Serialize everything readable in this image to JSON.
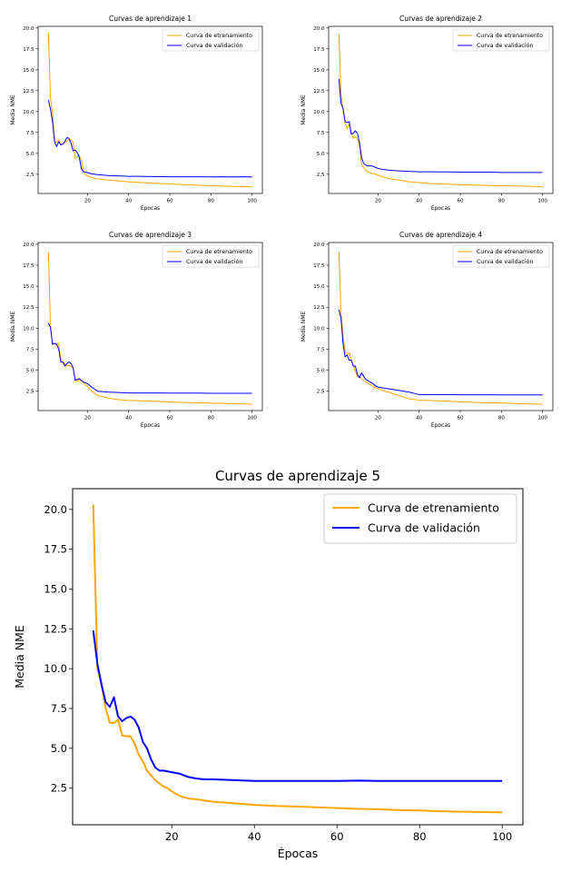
{
  "chart_data": [
    {
      "type": "line",
      "title": "Curvas de aprendizaje 1",
      "xlabel": "Épocas",
      "ylabel": "Media NME",
      "xlim": [
        -4,
        105
      ],
      "ylim": [
        0.2,
        20.2
      ],
      "xticks": [
        20,
        40,
        60,
        80,
        100
      ],
      "yticks": [
        2.5,
        5.0,
        7.5,
        10.0,
        12.5,
        15.0,
        17.5,
        20.0
      ],
      "legend_position": "top-right",
      "series": [
        {
          "name": "Curva de etrenamiento",
          "color": "#FFA500",
          "x": [
            1,
            2,
            3,
            4,
            5,
            6,
            7,
            8,
            9,
            10,
            11,
            12,
            13,
            14,
            15,
            16,
            17,
            18,
            19,
            20,
            22,
            25,
            30,
            35,
            40,
            45,
            50,
            55,
            60,
            65,
            70,
            75,
            80,
            85,
            90,
            95,
            100
          ],
          "y": [
            19.5,
            11.6,
            9.8,
            6.5,
            6.3,
            6.6,
            6.2,
            6.1,
            6.3,
            6.5,
            6.7,
            6.6,
            6.3,
            4.4,
            4.6,
            4.8,
            4.2,
            3.0,
            2.4,
            2.3,
            2.1,
            1.95,
            1.8,
            1.7,
            1.6,
            1.52,
            1.45,
            1.4,
            1.33,
            1.28,
            1.22,
            1.18,
            1.12,
            1.08,
            1.05,
            1.02,
            1.0
          ]
        },
        {
          "name": "Curva de validación",
          "color": "#0000FF",
          "x": [
            1,
            2,
            3,
            4,
            5,
            6,
            7,
            8,
            9,
            10,
            11,
            12,
            13,
            14,
            15,
            16,
            17,
            18,
            19,
            20,
            22,
            25,
            30,
            35,
            40,
            45,
            50,
            55,
            60,
            65,
            70,
            75,
            80,
            85,
            90,
            95,
            100
          ],
          "y": [
            11.4,
            10.3,
            8.8,
            6.4,
            5.8,
            6.4,
            6.0,
            6.1,
            6.4,
            6.9,
            6.8,
            6.2,
            5.3,
            5.4,
            5.1,
            4.5,
            3.2,
            2.8,
            2.75,
            2.7,
            2.55,
            2.45,
            2.35,
            2.3,
            2.25,
            2.25,
            2.22,
            2.22,
            2.2,
            2.2,
            2.2,
            2.2,
            2.18,
            2.2,
            2.18,
            2.2,
            2.18
          ]
        }
      ]
    },
    {
      "type": "line",
      "title": "Curvas de aprendizaje 2",
      "xlabel": "Épocas",
      "ylabel": "Media NME",
      "xlim": [
        -4,
        105
      ],
      "ylim": [
        0.2,
        20.2
      ],
      "xticks": [
        20,
        40,
        60,
        80,
        100
      ],
      "yticks": [
        2.5,
        5.0,
        7.5,
        10.0,
        12.5,
        15.0,
        17.5,
        20.0
      ],
      "legend_position": "top-right",
      "series": [
        {
          "name": "Curva de etrenamiento",
          "color": "#FFA500",
          "x": [
            1,
            2,
            3,
            4,
            5,
            6,
            7,
            8,
            9,
            10,
            11,
            12,
            13,
            14,
            15,
            16,
            17,
            18,
            19,
            20,
            22,
            25,
            30,
            35,
            40,
            45,
            50,
            55,
            60,
            65,
            70,
            75,
            80,
            85,
            90,
            95,
            100
          ],
          "y": [
            19.3,
            12.2,
            10.2,
            8.6,
            7.9,
            8.5,
            7.5,
            6.8,
            7.0,
            6.7,
            6.0,
            3.6,
            3.3,
            3.0,
            2.8,
            2.7,
            2.6,
            2.55,
            2.5,
            2.4,
            2.2,
            2.0,
            1.8,
            1.6,
            1.5,
            1.4,
            1.35,
            1.3,
            1.25,
            1.22,
            1.18,
            1.15,
            1.12,
            1.1,
            1.08,
            1.05,
            1.0
          ]
        },
        {
          "name": "Curva de validación",
          "color": "#0000FF",
          "x": [
            1,
            2,
            3,
            4,
            5,
            6,
            7,
            8,
            9,
            10,
            11,
            12,
            13,
            14,
            15,
            16,
            17,
            18,
            19,
            20,
            22,
            25,
            30,
            35,
            40,
            45,
            50,
            55,
            60,
            65,
            70,
            75,
            80,
            85,
            90,
            95,
            100
          ],
          "y": [
            13.9,
            11.0,
            10.4,
            8.8,
            8.7,
            8.8,
            7.3,
            7.4,
            7.7,
            7.4,
            6.3,
            4.5,
            3.8,
            3.6,
            3.5,
            3.5,
            3.5,
            3.4,
            3.3,
            3.2,
            3.1,
            3.0,
            2.9,
            2.85,
            2.8,
            2.8,
            2.78,
            2.78,
            2.75,
            2.75,
            2.75,
            2.75,
            2.72,
            2.72,
            2.72,
            2.72,
            2.72
          ]
        }
      ]
    },
    {
      "type": "line",
      "title": "Curvas de aprendizaje 3",
      "xlabel": "Épocas",
      "ylabel": "Media NME",
      "xlim": [
        -4,
        105
      ],
      "ylim": [
        0.2,
        20.2
      ],
      "xticks": [
        20,
        40,
        60,
        80,
        100
      ],
      "yticks": [
        2.5,
        5.0,
        7.5,
        10.0,
        12.5,
        15.0,
        17.5,
        20.0
      ],
      "legend_position": "top-right",
      "series": [
        {
          "name": "Curva de etrenamiento",
          "color": "#FFA500",
          "x": [
            1,
            2,
            3,
            4,
            5,
            6,
            7,
            8,
            9,
            10,
            11,
            12,
            13,
            14,
            15,
            16,
            17,
            18,
            19,
            20,
            22,
            25,
            30,
            35,
            40,
            45,
            50,
            55,
            60,
            65,
            70,
            75,
            80,
            85,
            90,
            95,
            100
          ],
          "y": [
            19.1,
            10.2,
            8.0,
            8.2,
            8.0,
            8.2,
            6.3,
            6.0,
            5.8,
            5.5,
            5.6,
            5.4,
            5.3,
            4.0,
            3.7,
            3.9,
            3.8,
            3.5,
            3.2,
            3.1,
            2.5,
            2.0,
            1.7,
            1.5,
            1.42,
            1.38,
            1.33,
            1.28,
            1.22,
            1.18,
            1.15,
            1.12,
            1.08,
            1.05,
            1.02,
            1.0,
            0.95
          ]
        },
        {
          "name": "Curva de validación",
          "color": "#0000FF",
          "x": [
            1,
            2,
            3,
            4,
            5,
            6,
            7,
            8,
            9,
            10,
            11,
            12,
            13,
            14,
            15,
            16,
            17,
            18,
            19,
            20,
            22,
            25,
            30,
            35,
            40,
            45,
            50,
            55,
            60,
            65,
            70,
            75,
            80,
            85,
            90,
            95,
            100
          ],
          "y": [
            10.6,
            10.1,
            8.1,
            8.2,
            8.1,
            7.5,
            6.0,
            6.0,
            5.5,
            5.8,
            6.0,
            5.8,
            5.3,
            3.8,
            3.9,
            4.0,
            3.8,
            3.6,
            3.5,
            3.4,
            3.0,
            2.5,
            2.4,
            2.35,
            2.3,
            2.3,
            2.3,
            2.3,
            2.28,
            2.28,
            2.28,
            2.28,
            2.26,
            2.26,
            2.26,
            2.26,
            2.26
          ]
        }
      ]
    },
    {
      "type": "line",
      "title": "Curvas de aprendizaje 4",
      "xlabel": "Épocas",
      "ylabel": "Media NME",
      "xlim": [
        -4,
        105
      ],
      "ylim": [
        0.2,
        20.2
      ],
      "xticks": [
        20,
        40,
        60,
        80,
        100
      ],
      "yticks": [
        2.5,
        5.0,
        7.5,
        10.0,
        12.5,
        15.0,
        17.5,
        20.0
      ],
      "legend_position": "top-right",
      "series": [
        {
          "name": "Curva de etrenamiento",
          "color": "#FFA500",
          "x": [
            1,
            2,
            3,
            4,
            5,
            6,
            7,
            8,
            9,
            10,
            11,
            12,
            13,
            14,
            15,
            16,
            17,
            18,
            19,
            20,
            22,
            25,
            30,
            35,
            40,
            45,
            50,
            55,
            60,
            65,
            70,
            75,
            80,
            85,
            90,
            95,
            100
          ],
          "y": [
            19.1,
            12.0,
            9.0,
            7.3,
            6.8,
            7.1,
            6.3,
            5.5,
            4.9,
            4.2,
            4.3,
            4.0,
            3.8,
            3.6,
            3.5,
            3.3,
            3.2,
            3.0,
            2.9,
            2.8,
            2.6,
            2.4,
            2.0,
            1.6,
            1.45,
            1.4,
            1.35,
            1.3,
            1.25,
            1.2,
            1.15,
            1.12,
            1.1,
            1.05,
            1.0,
            0.98,
            0.95
          ]
        },
        {
          "name": "Curva de validación",
          "color": "#0000FF",
          "x": [
            1,
            2,
            3,
            4,
            5,
            6,
            7,
            8,
            9,
            10,
            11,
            12,
            13,
            14,
            15,
            16,
            17,
            18,
            19,
            20,
            22,
            25,
            30,
            35,
            40,
            45,
            50,
            55,
            60,
            65,
            70,
            75,
            80,
            85,
            90,
            95,
            100
          ],
          "y": [
            12.2,
            11.2,
            8.2,
            6.6,
            6.8,
            6.2,
            6.2,
            5.5,
            5.5,
            4.5,
            4.1,
            4.7,
            4.3,
            3.9,
            3.8,
            3.6,
            3.5,
            3.3,
            3.1,
            3.0,
            2.9,
            2.8,
            2.6,
            2.4,
            2.1,
            2.1,
            2.1,
            2.1,
            2.08,
            2.08,
            2.08,
            2.08,
            2.06,
            2.06,
            2.06,
            2.06,
            2.06
          ]
        }
      ]
    },
    {
      "type": "line",
      "title": "Curvas de aprendizaje 5",
      "xlabel": "Épocas",
      "ylabel": "Media NME",
      "xlim": [
        -4,
        105
      ],
      "ylim": [
        0.2,
        21.3
      ],
      "xticks": [
        20,
        40,
        60,
        80,
        100
      ],
      "yticks": [
        2.5,
        5.0,
        7.5,
        10.0,
        12.5,
        15.0,
        17.5,
        20.0
      ],
      "legend_position": "top-right",
      "series": [
        {
          "name": "Curva de etrenamiento",
          "color": "#FFA500",
          "x": [
            1,
            2,
            3,
            4,
            5,
            6,
            7,
            8,
            9,
            10,
            11,
            12,
            13,
            14,
            15,
            16,
            17,
            18,
            19,
            20,
            22,
            24,
            26,
            28,
            30,
            35,
            40,
            45,
            50,
            55,
            60,
            65,
            70,
            75,
            80,
            85,
            90,
            95,
            100
          ],
          "y": [
            20.3,
            10.0,
            9.0,
            7.5,
            6.6,
            6.6,
            6.8,
            5.8,
            5.75,
            5.75,
            5.3,
            4.6,
            4.2,
            3.6,
            3.3,
            3.0,
            2.8,
            2.6,
            2.5,
            2.3,
            2.0,
            1.85,
            1.8,
            1.72,
            1.65,
            1.55,
            1.45,
            1.38,
            1.35,
            1.3,
            1.25,
            1.2,
            1.18,
            1.12,
            1.1,
            1.05,
            1.02,
            1.0,
            0.98
          ]
        },
        {
          "name": "Curva de validación",
          "color": "#0000FF",
          "x": [
            1,
            2,
            3,
            4,
            5,
            6,
            7,
            8,
            9,
            10,
            11,
            12,
            13,
            14,
            15,
            16,
            17,
            18,
            19,
            20,
            22,
            24,
            26,
            28,
            30,
            35,
            40,
            45,
            50,
            55,
            60,
            65,
            70,
            75,
            80,
            85,
            90,
            95,
            100
          ],
          "y": [
            12.4,
            10.3,
            9.0,
            7.9,
            7.6,
            8.2,
            7.0,
            6.7,
            6.9,
            7.0,
            6.8,
            6.3,
            5.4,
            5.0,
            4.3,
            3.8,
            3.6,
            3.6,
            3.55,
            3.5,
            3.4,
            3.2,
            3.1,
            3.05,
            3.05,
            3.0,
            2.95,
            2.95,
            2.95,
            2.95,
            2.95,
            2.97,
            2.95,
            2.95,
            2.95,
            2.95,
            2.95,
            2.95,
            2.95
          ]
        }
      ]
    }
  ]
}
